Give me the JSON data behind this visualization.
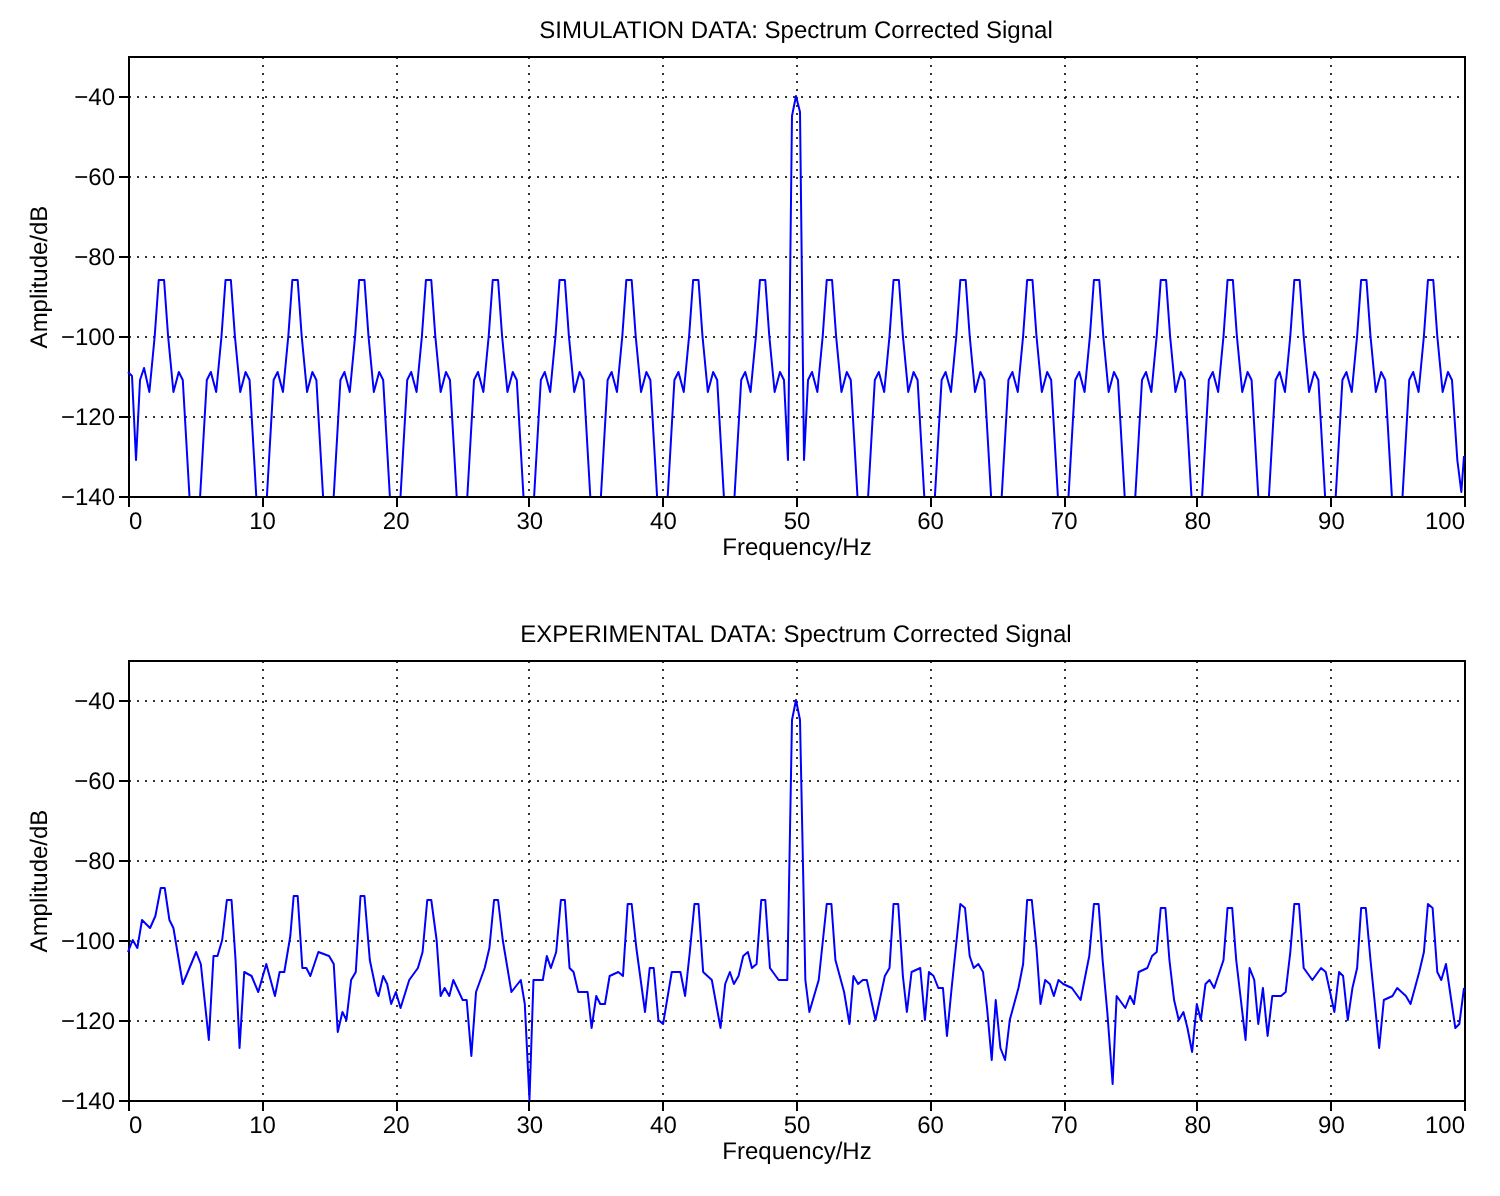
{
  "chart_data": [
    {
      "type": "line",
      "title": "SIMULATION DATA: Spectrum Corrected Signal",
      "xlabel": "Frequency/Hz",
      "ylabel": "Amplitude/dB",
      "x": [
        0,
        0.3,
        0.6,
        0.9,
        1.2,
        1.6,
        2,
        2.3,
        2.7,
        3,
        3.4,
        3.8,
        4.1,
        4.6,
        5,
        5.4,
        5.9,
        6.2,
        6.6,
        7,
        7.3,
        7.7,
        8,
        8.4,
        8.8,
        9.1,
        9.6,
        10,
        10.4,
        10.9,
        11.2,
        11.6,
        12,
        12.3,
        12.7,
        13,
        13.4,
        13.8,
        14.1,
        14.6,
        15,
        15.4,
        15.9,
        16.2,
        16.6,
        17,
        17.3,
        17.7,
        18,
        18.4,
        18.8,
        19.1,
        19.6,
        20,
        20.4,
        20.9,
        21.2,
        21.6,
        22,
        22.3,
        22.7,
        23,
        23.4,
        23.8,
        24.1,
        24.6,
        25,
        25.4,
        25.9,
        26.2,
        26.6,
        27,
        27.3,
        27.7,
        28,
        28.4,
        28.8,
        29.1,
        29.6,
        30,
        30.4,
        30.9,
        31.2,
        31.6,
        32,
        32.3,
        32.7,
        33,
        33.4,
        33.8,
        34.1,
        34.6,
        35,
        35.4,
        35.9,
        36.2,
        36.6,
        37,
        37.3,
        37.7,
        38,
        38.4,
        38.8,
        39.1,
        39.6,
        40,
        40.4,
        40.9,
        41.2,
        41.6,
        42,
        42.3,
        42.7,
        43,
        43.4,
        43.8,
        44.1,
        44.6,
        45,
        45.4,
        45.9,
        46.2,
        46.6,
        47,
        47.3,
        47.7,
        48,
        48.4,
        48.8,
        49.1,
        49.4,
        49.7,
        50,
        50.3,
        50.6,
        50.9,
        51.2,
        51.6,
        52,
        52.3,
        52.7,
        53,
        53.4,
        53.8,
        54.1,
        54.6,
        55,
        55.4,
        55.9,
        56.2,
        56.6,
        57,
        57.3,
        57.7,
        58,
        58.4,
        58.8,
        59.1,
        59.6,
        60,
        60.4,
        60.9,
        61.2,
        61.6,
        62,
        62.3,
        62.7,
        63,
        63.4,
        63.8,
        64.1,
        64.6,
        65,
        65.4,
        65.9,
        66.2,
        66.6,
        67,
        67.3,
        67.7,
        68,
        68.4,
        68.8,
        69.1,
        69.6,
        70,
        70.4,
        70.9,
        71.2,
        71.6,
        72,
        72.3,
        72.7,
        73,
        73.4,
        73.8,
        74.1,
        74.6,
        75,
        75.4,
        75.9,
        76.2,
        76.6,
        77,
        77.3,
        77.7,
        78,
        78.4,
        78.8,
        79.1,
        79.6,
        80,
        80.4,
        80.9,
        81.2,
        81.6,
        82,
        82.3,
        82.7,
        83,
        83.4,
        83.8,
        84.1,
        84.6,
        85,
        85.4,
        85.9,
        86.2,
        86.6,
        87,
        87.3,
        87.7,
        88,
        88.4,
        88.8,
        89.1,
        89.6,
        90,
        90.4,
        90.9,
        91.2,
        91.6,
        92,
        92.3,
        92.7,
        93,
        93.4,
        93.8,
        94.1,
        94.6,
        95,
        95.4,
        95.9,
        96.2,
        96.6,
        97,
        97.3,
        97.7,
        98,
        98.4,
        98.8,
        99.1,
        99.5,
        99.8,
        100
      ],
      "series": [
        {
          "color": "#0000ff",
          "values": [
            -109,
            -110,
            -131,
            -111,
            -108,
            -114,
            -100,
            -86,
            -86,
            -100,
            -114,
            -109,
            -111,
            -140,
            null,
            -140,
            -111,
            -109,
            -114,
            -100,
            -86,
            -86,
            -100,
            -114,
            -109,
            -111,
            -140,
            null,
            -140,
            -111,
            -109,
            -114,
            -100,
            -86,
            -86,
            -100,
            -114,
            -109,
            -111,
            -140,
            null,
            -140,
            -111,
            -109,
            -114,
            -100,
            -86,
            -86,
            -100,
            -114,
            -109,
            -111,
            -140,
            null,
            -140,
            -111,
            -109,
            -114,
            -100,
            -86,
            -86,
            -100,
            -114,
            -109,
            -111,
            -140,
            null,
            -140,
            -111,
            -109,
            -114,
            -100,
            -86,
            -86,
            -100,
            -114,
            -109,
            -111,
            -140,
            null,
            -140,
            -111,
            -109,
            -114,
            -100,
            -86,
            -86,
            -100,
            -114,
            -109,
            -111,
            -140,
            null,
            -140,
            -111,
            -109,
            -114,
            -100,
            -86,
            -86,
            -100,
            -114,
            -109,
            -111,
            -140,
            null,
            -140,
            -111,
            -109,
            -114,
            -100,
            -86,
            -86,
            -100,
            -114,
            -109,
            -111,
            -140,
            null,
            -140,
            -111,
            -109,
            -114,
            -100,
            -86,
            -86,
            -100,
            -114,
            -109,
            -111,
            -131,
            -45,
            -40,
            -44,
            -131,
            -111,
            -109,
            -114,
            -100,
            -86,
            -86,
            -100,
            -114,
            -109,
            -111,
            -140,
            null,
            -140,
            -111,
            -109,
            -114,
            -100,
            -86,
            -86,
            -100,
            -114,
            -109,
            -111,
            -140,
            null,
            -140,
            -111,
            -109,
            -114,
            -100,
            -86,
            -86,
            -100,
            -114,
            -109,
            -111,
            -140,
            null,
            -140,
            -111,
            -109,
            -114,
            -100,
            -86,
            -86,
            -100,
            -114,
            -109,
            -111,
            -140,
            null,
            -140,
            -111,
            -109,
            -114,
            -100,
            -86,
            -86,
            -100,
            -114,
            -109,
            -111,
            -140,
            null,
            -140,
            -111,
            -109,
            -114,
            -100,
            -86,
            -86,
            -100,
            -114,
            -109,
            -111,
            -140,
            null,
            -140,
            -111,
            -109,
            -114,
            -100,
            -86,
            -86,
            -100,
            -114,
            -109,
            -111,
            -140,
            null,
            -140,
            -111,
            -109,
            -114,
            -100,
            -86,
            -86,
            -100,
            -114,
            -109,
            -111,
            -140,
            null,
            -140,
            -111,
            -109,
            -114,
            -100,
            -86,
            -86,
            -100,
            -114,
            -109,
            -111,
            -140,
            null,
            -140,
            -111,
            -109,
            -114,
            -100,
            -86,
            -86,
            -100,
            -114,
            -109,
            -111,
            -131,
            -139,
            -130
          ]
        }
      ],
      "xlim": [
        0,
        100
      ],
      "xticks": [
        0,
        10,
        20,
        30,
        40,
        50,
        60,
        70,
        80,
        90,
        100
      ],
      "ylim": [
        -140,
        -30
      ],
      "yticks": [
        -140,
        -120,
        -100,
        -80,
        -60,
        -40
      ],
      "grid": true
    },
    {
      "type": "line",
      "title": "EXPERIMENTAL DATA: Spectrum Corrected Signal",
      "xlabel": "Frequency/Hz",
      "ylabel": "Amplitude/dB",
      "x": [
        0,
        0.35,
        0.7,
        1.05,
        1.65,
        2.05,
        2.45,
        2.75,
        3.1,
        3.4,
        4.1,
        5.1,
        5.45,
        6.05,
        6.4,
        6.7,
        7.05,
        7.4,
        7.75,
        8.05,
        8.35,
        8.7,
        9.25,
        9.75,
        10.35,
        11,
        11.35,
        11.7,
        12.15,
        12.4,
        12.7,
        13.05,
        13.35,
        13.65,
        14.25,
        15.05,
        15.4,
        15.7,
        16.05,
        16.35,
        16.7,
        17.05,
        17.4,
        17.7,
        18.1,
        18.6,
        18.75,
        19.1,
        19.4,
        19.7,
        20.05,
        20.4,
        21.05,
        21.7,
        22.05,
        22.4,
        22.7,
        23.1,
        23.4,
        23.7,
        24.05,
        24.35,
        25.05,
        25.35,
        25.7,
        26.05,
        26.7,
        27.05,
        27.4,
        27.7,
        28.05,
        28.7,
        29.4,
        29.7,
        30.05,
        30.35,
        31.05,
        31.35,
        31.65,
        32.05,
        32.4,
        32.7,
        33.05,
        33.35,
        33.7,
        34.05,
        34.4,
        34.7,
        35.05,
        35.35,
        35.7,
        36.05,
        36.7,
        37.05,
        37.4,
        37.7,
        38.05,
        38.7,
        39.05,
        39.35,
        39.7,
        40.05,
        40.7,
        41.35,
        41.7,
        42.05,
        42.4,
        42.7,
        43.05,
        43.7,
        44.35,
        44.7,
        45.05,
        45.35,
        45.7,
        46.05,
        46.4,
        46.7,
        47.05,
        47.4,
        47.7,
        48.05,
        48.7,
        49.35,
        49.7,
        50,
        50.3,
        50.7,
        51,
        51.7,
        52.3,
        52.65,
        52.95,
        53.6,
        54,
        54.3,
        54.65,
        55,
        55.3,
        55.95,
        56.65,
        57,
        57.3,
        57.65,
        58,
        58.3,
        58.65,
        59.3,
        59.65,
        59.95,
        60.3,
        60.65,
        61,
        61.3,
        61.65,
        62.3,
        62.65,
        63,
        63.3,
        63.65,
        64,
        64.3,
        64.65,
        64.95,
        65.3,
        65.65,
        66,
        66.65,
        67,
        67.3,
        67.65,
        68,
        68.3,
        68.65,
        69,
        69.3,
        69.65,
        70,
        70.65,
        71.3,
        71.95,
        72.3,
        72.65,
        72.95,
        73.3,
        73.7,
        74,
        74.65,
        75,
        75.3,
        75.65,
        76.3,
        76.65,
        77,
        77.3,
        77.65,
        77.95,
        78.3,
        78.65,
        79,
        79.3,
        79.65,
        80,
        80.3,
        80.65,
        80.95,
        81.3,
        82,
        82.3,
        82.65,
        82.95,
        83.3,
        83.65,
        83.95,
        84.3,
        84.6,
        84.95,
        85.3,
        85.65,
        86.3,
        86.65,
        87,
        87.3,
        87.65,
        88,
        88.65,
        89.3,
        89.65,
        90.3,
        90.65,
        90.95,
        91.3,
        91.65,
        92,
        92.3,
        92.65,
        93,
        93.3,
        93.65,
        94,
        94.65,
        95,
        95.65,
        96,
        96.65,
        97,
        97.3,
        97.65,
        98,
        98.3,
        98.65,
        99,
        99.35,
        99.65,
        100
      ],
      "series": [
        {
          "color": "#0000ff",
          "values": [
            -103,
            -100,
            -102,
            -95,
            -97,
            -94,
            -87,
            -87,
            -95,
            -97,
            -111,
            -103,
            -106,
            -125,
            -104,
            -104,
            -100,
            -90,
            -90,
            -105,
            -127,
            -108,
            -109,
            -113,
            -106,
            -114,
            -108,
            -108,
            -99,
            -89,
            -89,
            -107,
            -107,
            -109,
            -103,
            -104,
            -106,
            -123,
            -118,
            -120,
            -110,
            -108,
            -89,
            -89,
            -105,
            -113,
            -114,
            -109,
            -111,
            -116,
            -113,
            -117,
            -110,
            -107,
            -103,
            -90,
            -90,
            -100,
            -114,
            -112,
            -114,
            -110,
            -115,
            -115,
            -129,
            -113,
            -107,
            -102,
            -90,
            -90,
            -100,
            -113,
            -110,
            -116,
            -140,
            -110,
            -110,
            -104,
            -107,
            -103,
            -90,
            -90,
            -107,
            -108,
            -113,
            -113,
            -113,
            -122,
            -114,
            -116,
            -116,
            -109,
            -108,
            -109,
            -91,
            -91,
            -102,
            -118,
            -107,
            -107,
            -120,
            -121,
            -108,
            -108,
            -114,
            -103,
            -91,
            -91,
            -108,
            -110,
            -122,
            -111,
            -108,
            -111,
            -109,
            -104,
            -103,
            -107,
            -106,
            -90,
            -90,
            -107,
            -110,
            -110,
            -45,
            -40,
            -45,
            -110,
            -118,
            -110,
            -91,
            -91,
            -105,
            -113,
            -121,
            -109,
            -111,
            -110,
            -110,
            -120,
            -109,
            -107,
            -91,
            -91,
            -109,
            -118,
            -108,
            -107,
            -120,
            -108,
            -109,
            -112,
            -112,
            -124,
            -112,
            -91,
            -92,
            -104,
            -107,
            -106,
            -108,
            -117,
            -130,
            -115,
            -127,
            -130,
            -120,
            -112,
            -106,
            -90,
            -90,
            -102,
            -116,
            -110,
            -111,
            -114,
            -110,
            -111,
            -112,
            -115,
            -104,
            -91,
            -91,
            -105,
            -118,
            -136,
            -114,
            -117,
            -114,
            -116,
            -108,
            -107,
            -104,
            -103,
            -92,
            -92,
            -105,
            -115,
            -120,
            -118,
            -122,
            -128,
            -116,
            -120,
            -111,
            -110,
            -112,
            -105,
            -92,
            -92,
            -105,
            -115,
            -125,
            -107,
            -110,
            -121,
            -112,
            -124,
            -114,
            -114,
            -113,
            -103,
            -91,
            -91,
            -107,
            -110,
            -107,
            -108,
            -118,
            -108,
            -109,
            -120,
            -112,
            -107,
            -92,
            -92,
            -105,
            -115,
            -127,
            -115,
            -114,
            -112,
            -114,
            -116,
            -108,
            -103,
            -91,
            -92,
            -108,
            -110,
            -106,
            -114,
            -122,
            -121,
            -112
          ]
        }
      ],
      "xlim": [
        0,
        100
      ],
      "xticks": [
        0,
        10,
        20,
        30,
        40,
        50,
        60,
        70,
        80,
        90,
        100
      ],
      "ylim": [
        -140,
        -30
      ],
      "yticks": [
        -140,
        -120,
        -100,
        -80,
        -60,
        -40
      ],
      "grid": true
    }
  ]
}
